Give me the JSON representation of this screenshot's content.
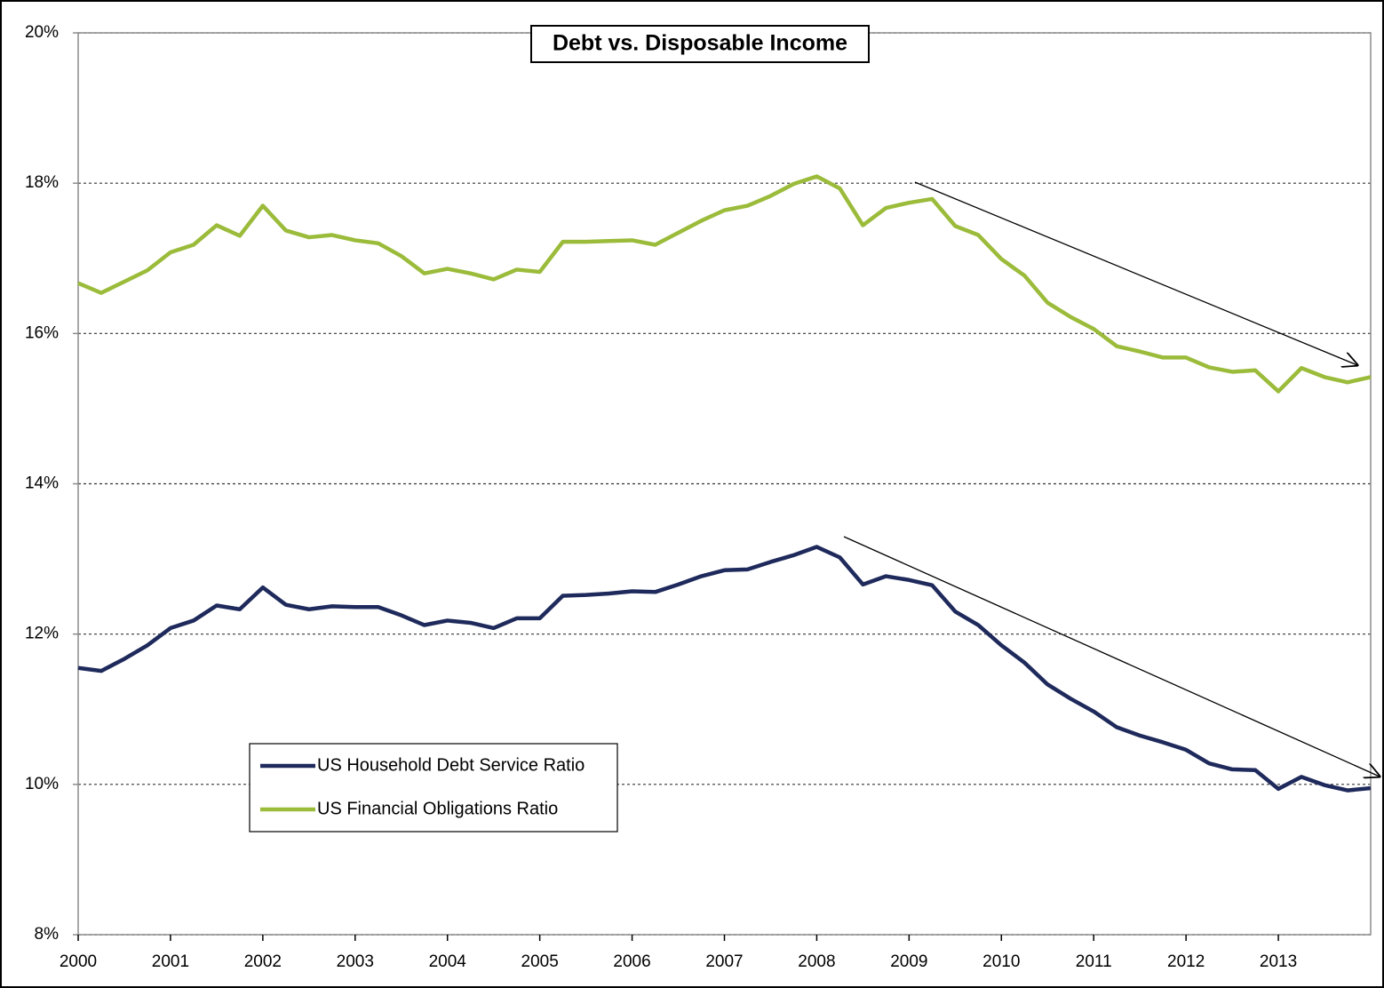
{
  "chart_data": {
    "type": "line",
    "title": "Debt vs. Disposable Income",
    "x": [
      2000,
      2000.25,
      2000.5,
      2000.75,
      2001,
      2001.25,
      2001.5,
      2001.75,
      2002,
      2002.25,
      2002.5,
      2002.75,
      2003,
      2003.25,
      2003.5,
      2003.75,
      2004,
      2004.25,
      2004.5,
      2004.75,
      2005,
      2005.25,
      2005.5,
      2005.75,
      2006,
      2006.25,
      2006.5,
      2006.75,
      2007,
      2007.25,
      2007.5,
      2007.75,
      2008,
      2008.25,
      2008.5,
      2008.75,
      2009,
      2009.25,
      2009.5,
      2009.75,
      2010,
      2010.25,
      2010.5,
      2010.75,
      2011,
      2011.25,
      2011.5,
      2011.75,
      2012,
      2012.25,
      2012.5,
      2012.75,
      2013,
      2013.25,
      2013.5,
      2013.75,
      2014
    ],
    "series": [
      {
        "name": "US Household Debt Service Ratio",
        "color": "#1f2a5c",
        "values": [
          11.55,
          11.51,
          11.67,
          11.85,
          12.08,
          12.18,
          12.38,
          12.33,
          12.62,
          12.39,
          12.33,
          12.37,
          12.36,
          12.36,
          12.25,
          12.12,
          12.18,
          12.15,
          12.08,
          12.21,
          12.21,
          12.51,
          12.52,
          12.54,
          12.57,
          12.56,
          12.66,
          12.77,
          12.85,
          12.86,
          12.96,
          13.05,
          13.16,
          13.02,
          12.66,
          12.77,
          12.72,
          12.65,
          12.3,
          12.12,
          11.85,
          11.62,
          11.33,
          11.14,
          10.97,
          10.76,
          10.65,
          10.56,
          10.46,
          10.28,
          10.2,
          10.19,
          9.94,
          10.1,
          9.99,
          9.92,
          9.95
        ]
      },
      {
        "name": "US Financial Obligations Ratio",
        "color": "#9bbb3a",
        "values": [
          16.67,
          16.54,
          16.69,
          16.84,
          17.08,
          17.18,
          17.44,
          17.3,
          17.7,
          17.37,
          17.28,
          17.31,
          17.24,
          17.2,
          17.03,
          16.8,
          16.86,
          16.8,
          16.72,
          16.85,
          16.82,
          17.22,
          17.22,
          17.23,
          17.24,
          17.18,
          17.34,
          17.5,
          17.64,
          17.7,
          17.83,
          17.99,
          18.09,
          17.93,
          17.44,
          17.67,
          17.74,
          17.79,
          17.43,
          17.31,
          16.99,
          16.77,
          16.41,
          16.22,
          16.06,
          15.83,
          15.76,
          15.68,
          15.68,
          15.55,
          15.49,
          15.51,
          15.23,
          15.54,
          15.42,
          15.35,
          15.42
        ]
      }
    ],
    "xlim": [
      2000,
      2014
    ],
    "xticks": [
      2000,
      2001,
      2002,
      2003,
      2004,
      2005,
      2006,
      2007,
      2008,
      2009,
      2010,
      2011,
      2012,
      2013
    ],
    "ylim": [
      8,
      20
    ],
    "yticks": [
      {
        "value": 8,
        "label": "8%"
      },
      {
        "value": 10,
        "label": "10%"
      },
      {
        "value": 12,
        "label": "12%"
      },
      {
        "value": 14,
        "label": "14%"
      },
      {
        "value": 16,
        "label": "16%"
      },
      {
        "value": 18,
        "label": "18%"
      },
      {
        "value": 20,
        "label": "20%"
      }
    ],
    "grid": true
  }
}
